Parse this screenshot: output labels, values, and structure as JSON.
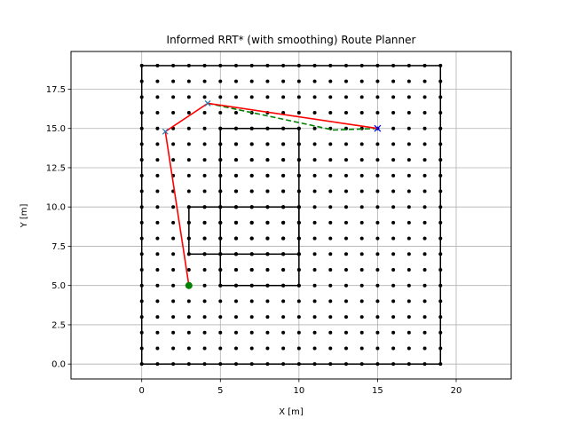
{
  "chart_data": {
    "type": "scatter",
    "title": "Informed RRT* (with smoothing) Route Planner",
    "xlabel": "X [m]",
    "ylabel": "Y [m]",
    "xlim": [
      -4.5,
      23.5
    ],
    "ylim": [
      -0.95,
      19.9
    ],
    "xticks": [
      0,
      5,
      10,
      15,
      20
    ],
    "xtick_labels": [
      "0",
      "5",
      "10",
      "15",
      "20"
    ],
    "yticks": [
      0,
      2.5,
      5,
      7.5,
      10,
      12.5,
      15,
      17.5
    ],
    "ytick_labels": [
      "0.0",
      "2.5",
      "5.0",
      "7.5",
      "10.0",
      "12.5",
      "15.0",
      "17.5"
    ],
    "grid": true,
    "start": {
      "x": 3,
      "y": 5
    },
    "goal": {
      "x": 15,
      "y": 15
    },
    "rrt_path": [
      [
        3,
        5
      ],
      [
        1.5,
        14.8
      ],
      [
        4.2,
        16.6
      ],
      [
        15,
        15
      ]
    ],
    "smoothed_path": [
      [
        4.2,
        16.6
      ],
      [
        8,
        15.8
      ],
      [
        12.2,
        14.9
      ],
      [
        15,
        15
      ]
    ],
    "obstacle_rectangles": [
      {
        "x": [
          0,
          19
        ],
        "y": [
          0,
          19
        ]
      },
      {
        "x": [
          5,
          10
        ],
        "y": [
          5,
          15
        ]
      },
      {
        "x": [
          3,
          10
        ],
        "y": [
          7,
          10
        ]
      }
    ],
    "colors": {
      "obstacle": "#000000",
      "rrt_path": "#ff0000",
      "smoothed_path": "#008000",
      "start": "#008000",
      "goal": "#0000ff",
      "waypoint_marker": "#1f77b4",
      "grid": "#b0b0b0"
    }
  }
}
